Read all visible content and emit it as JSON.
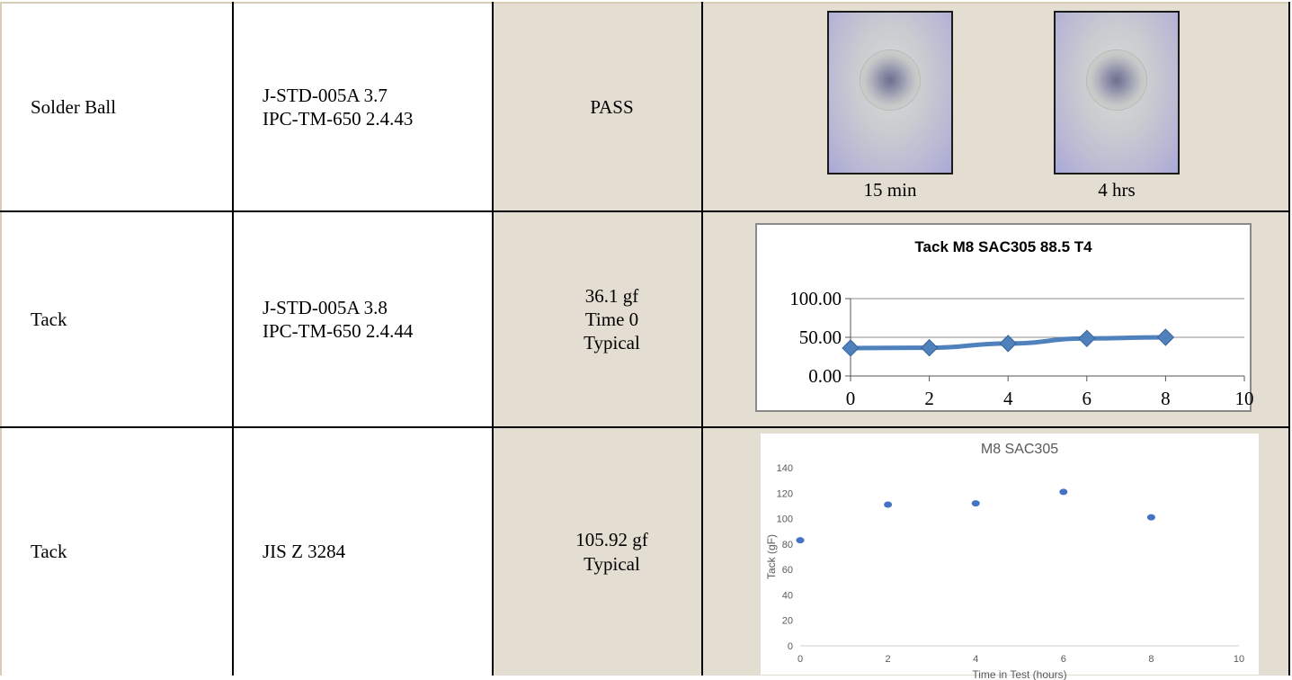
{
  "rows": [
    {
      "name": "Solder Ball",
      "method": [
        "J-STD-005A 3.7",
        "IPC-TM-650 2.4.43"
      ],
      "result": [
        "PASS"
      ],
      "images": [
        {
          "caption": "15 min"
        },
        {
          "caption": "4 hrs"
        }
      ]
    },
    {
      "name": "Tack",
      "method": [
        "J-STD-005A 3.8",
        "IPC-TM-650 2.4.44"
      ],
      "result": [
        "36.1 gf",
        "Time 0",
        "Typical"
      ]
    },
    {
      "name": "Tack",
      "method": [
        "JIS Z 3284"
      ],
      "result": [
        "105.92 gf",
        "Typical"
      ]
    }
  ],
  "chart_data": [
    {
      "type": "line",
      "title": "Tack M8 SAC305 88.5 T4",
      "xlabel": "",
      "ylabel": "",
      "x": [
        0,
        2,
        4,
        6,
        8
      ],
      "series": [
        {
          "values": [
            36.1,
            36.5,
            42.0,
            48.5,
            50.0
          ]
        }
      ],
      "xlim": [
        0,
        10
      ],
      "ylim": [
        0,
        100
      ],
      "x_ticks": [
        "0",
        "2",
        "4",
        "6",
        "8",
        "10"
      ],
      "y_ticks": [
        "0.00",
        "50.00",
        "100.00"
      ],
      "grid": true,
      "color": "#4f81bd"
    },
    {
      "type": "scatter",
      "title": "M8 SAC305",
      "xlabel": "Time in Test (hours)",
      "ylabel": "Tack (gF)",
      "x": [
        0,
        2,
        4,
        6,
        8
      ],
      "series": [
        {
          "values": [
            83,
            111,
            112,
            121,
            101
          ]
        }
      ],
      "xlim": [
        0,
        10
      ],
      "ylim": [
        0,
        140
      ],
      "x_ticks": [
        "0",
        "2",
        "4",
        "6",
        "8",
        "10"
      ],
      "y_ticks": [
        "0",
        "20",
        "40",
        "60",
        "80",
        "100",
        "120",
        "140"
      ],
      "grid": false,
      "color": "#4472c4"
    }
  ]
}
